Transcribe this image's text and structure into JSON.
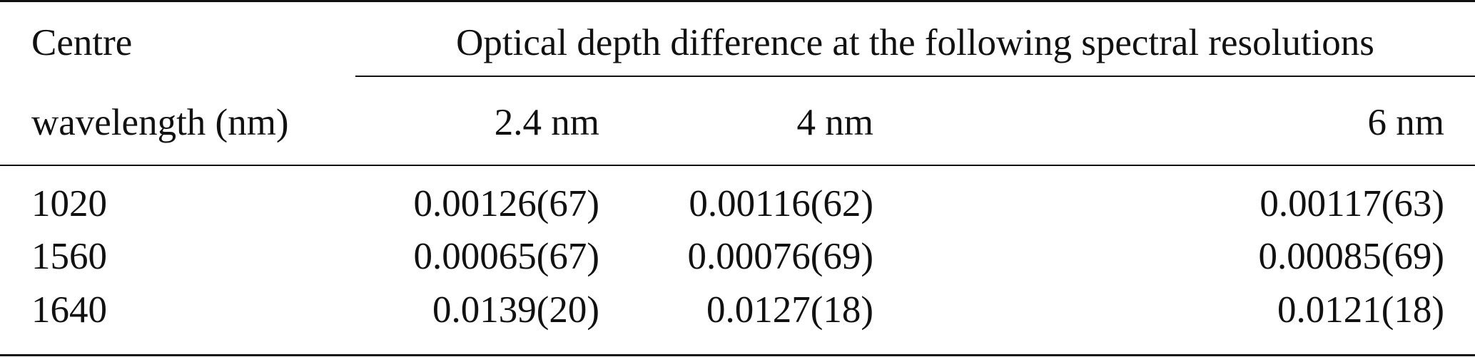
{
  "table": {
    "header": {
      "row1": {
        "col0": "Centre",
        "group": "Optical depth difference at the following spectral resolutions"
      },
      "row2": {
        "col0": "wavelength (nm)",
        "col1": "2.4 nm",
        "col2": "4 nm",
        "col3": "6 nm"
      }
    },
    "rows": [
      {
        "wavelength": "1020",
        "v1": "0.00126(67)",
        "v2": "0.00116(62)",
        "v3": "0.00117(63)"
      },
      {
        "wavelength": "1560",
        "v1": "0.00065(67)",
        "v2": "0.00076(69)",
        "v3": "0.00085(69)"
      },
      {
        "wavelength": "1640",
        "v1": "0.0139(20)",
        "v2": "0.0127(18)",
        "v3": "0.0121(18)"
      }
    ]
  }
}
